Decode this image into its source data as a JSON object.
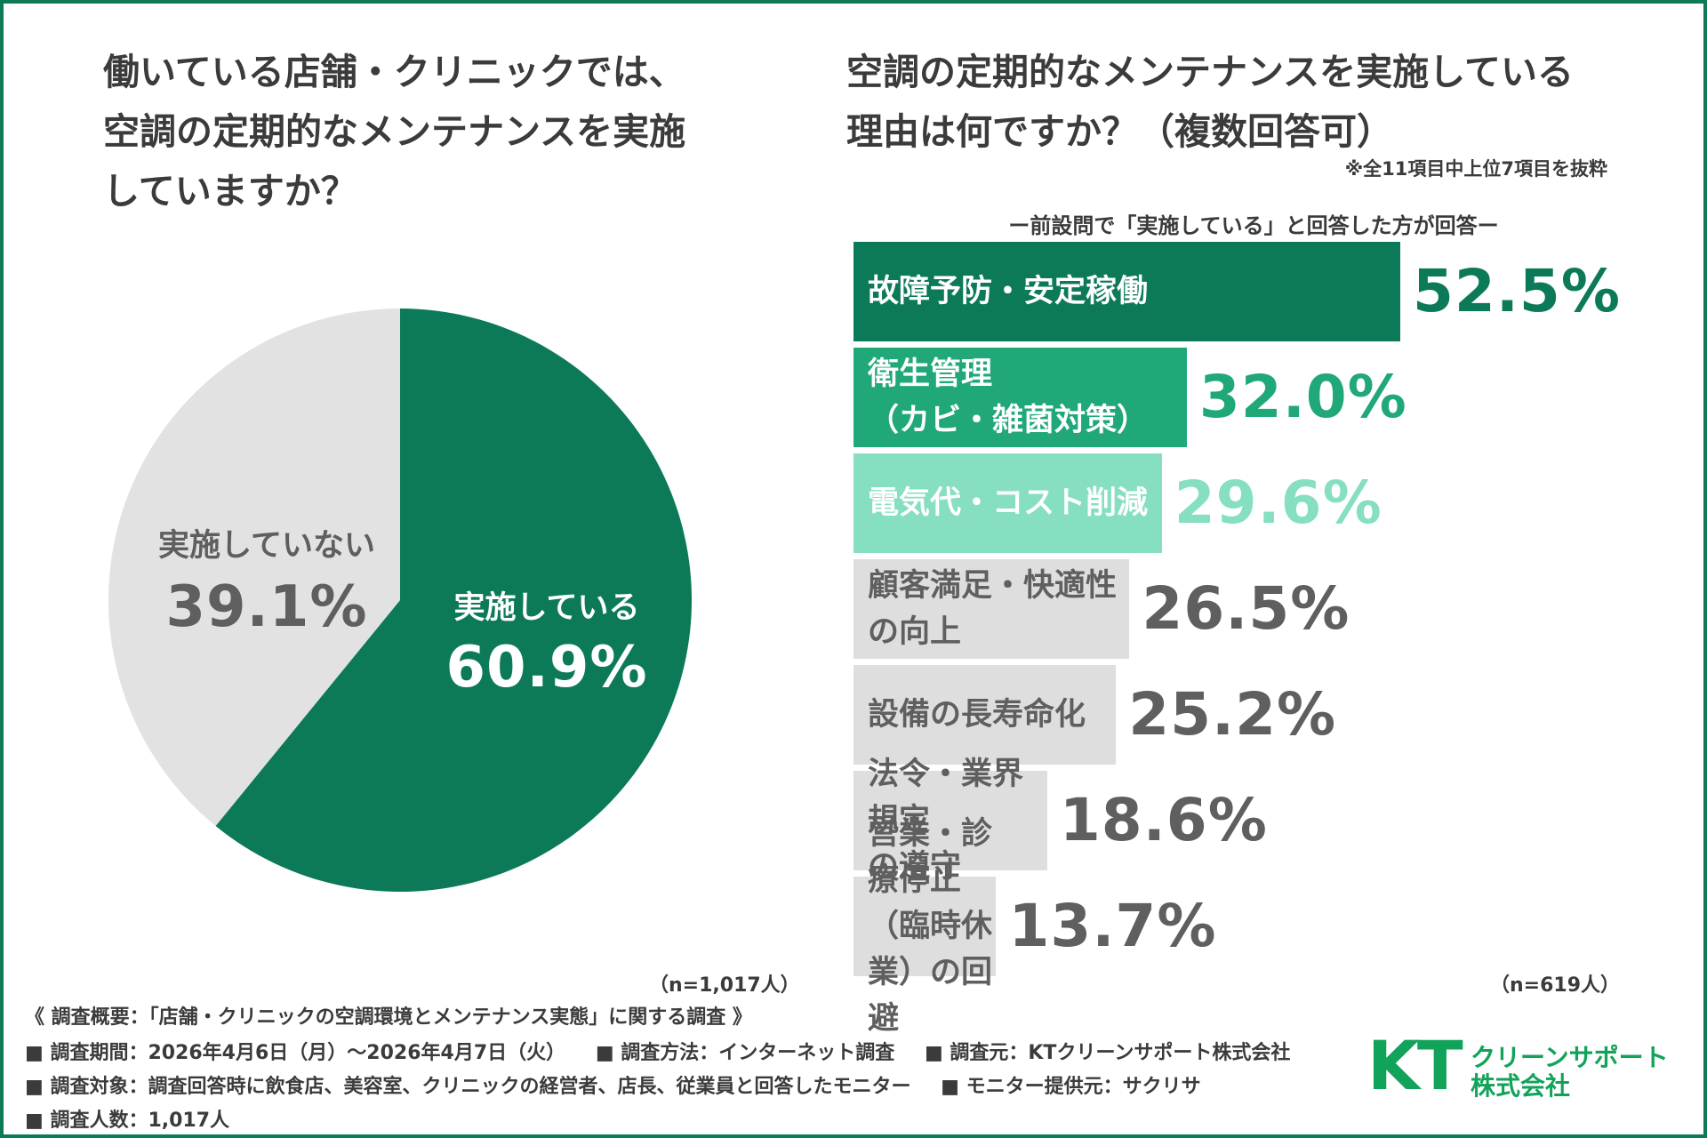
{
  "left_title": [
    "働いている店舗・クリニックでは、",
    "空調の定期的なメンテナンスを実施",
    "していますか？"
  ],
  "right_title": [
    "空調の定期的なメンテナンスを実施している",
    "理由は何ですか？（複数回答可）"
  ],
  "right_note": "※全11項目中上位7項目を抜粋",
  "bar_subtitle": "ー前設問で「実施している」と回答した方が回答ー",
  "pie_n": "（n=1,017人）",
  "bar_n": "（n=619人）",
  "colors": {
    "primary": "#0c7a58",
    "bar_2": "#20a878",
    "bar_3": "#86dfc0",
    "gray_bar": "#dedede",
    "gray_text": "#5f5f5f",
    "logo": "#12a35a"
  },
  "chart_data": [
    {
      "type": "pie",
      "slices": [
        {
          "label": "実施している",
          "value": 60.9,
          "value_label": "60.9%",
          "color": "#0c7a58"
        },
        {
          "label": "実施していない",
          "value": 39.1,
          "value_label": "39.1%",
          "color": "#e2e2e2"
        }
      ]
    },
    {
      "type": "bar",
      "orientation": "horizontal",
      "categories": [
        "故障予防・安定稼働",
        "衛生管理\n（カビ・雑菌対策）",
        "電気代・コスト削減",
        "顧客満足・快適性\nの向上",
        "設備の長寿命化",
        "法令・業界規定\nの遵守",
        "営業・診療停止\n（臨時休業）の回避"
      ],
      "values": [
        52.5,
        32.0,
        29.6,
        26.5,
        25.2,
        18.6,
        13.7
      ],
      "value_labels": [
        "52.5%",
        "32.0%",
        "29.6%",
        "26.5%",
        "25.2%",
        "18.6%",
        "13.7%"
      ],
      "bar_colors": [
        "#0c7a58",
        "#20a878",
        "#86dfc0",
        "#dedede",
        "#dedede",
        "#dedede",
        "#dedede"
      ],
      "label_colors": [
        "#ffffff",
        "#ffffff",
        "#ffffff",
        "#5f5f5f",
        "#5f5f5f",
        "#5f5f5f",
        "#5f5f5f"
      ],
      "value_colors": [
        "#0c7a58",
        "#20a878",
        "#86dfc0",
        "#5f5f5f",
        "#5f5f5f",
        "#5f5f5f",
        "#5f5f5f"
      ]
    }
  ],
  "footer": {
    "summary": "《 調査概要：「店舗・クリニックの空調環境とメンテナンス実態」に関する調査 》",
    "period": "■ 調査期間：2026年4月6日（月）～2026年4月7日（火）",
    "method": "■ 調査方法：インターネット調査",
    "source": "■ 調査元：KTクリーンサポート株式会社",
    "target": "■ 調査対象：調査回答時に飲食店、美容室、クリニックの経営者、店長、従業員と回答したモニター",
    "provider": "■ モニター提供元：サクリサ",
    "count": "■ 調査人数：1,017人"
  },
  "logo": {
    "mark": "KT",
    "name": "クリーンサポート\n株式会社"
  }
}
